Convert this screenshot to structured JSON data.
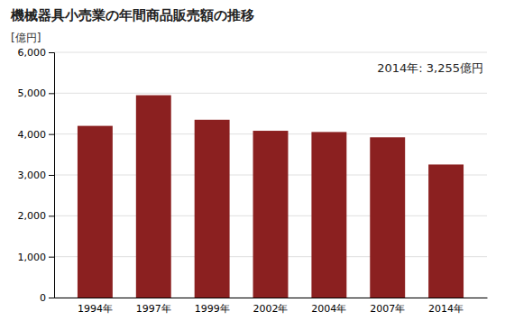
{
  "chart_data": {
    "type": "bar",
    "title": "機械器具小売業の年間商品販売額の推移",
    "ylabel": "[億円]",
    "annotation": "2014年: 3,255億円",
    "categories": [
      "1994年",
      "1997年",
      "1999年",
      "2002年",
      "2004年",
      "2007年",
      "2014年"
    ],
    "values": [
      4200,
      4950,
      4350,
      4080,
      4050,
      3920,
      3255
    ],
    "color": "#8B2020",
    "ylim": [
      0,
      6000
    ],
    "yticks": [
      0,
      {
        "value": 1000,
        "label": "1,000"
      },
      {
        "value": 2000,
        "label": "2,000"
      },
      {
        "value": 3000,
        "label": "3,000"
      },
      {
        "value": 4000,
        "label": "4,000"
      },
      {
        "value": 5000,
        "label": "5,000"
      },
      {
        "value": 6000,
        "label": "6,000"
      }
    ],
    "grid": true
  }
}
